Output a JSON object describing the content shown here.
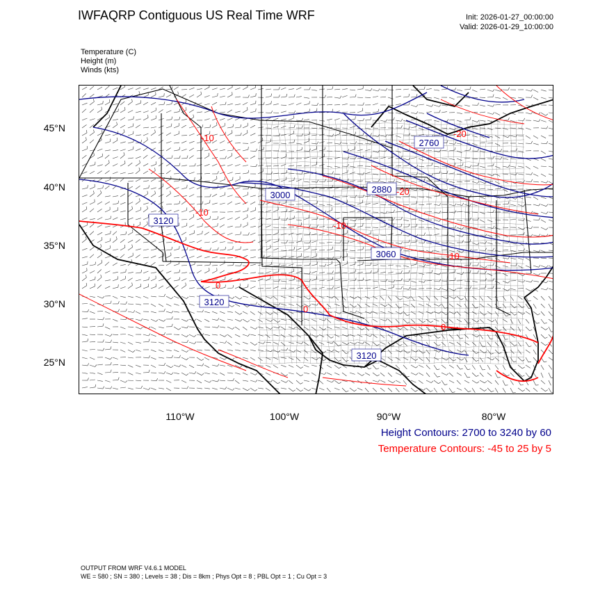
{
  "header": {
    "title": "IWFAQRP Contiguous US Real Time WRF",
    "init": "Init: 2026-01-27_00:00:00",
    "valid": "Valid: 2026-01-29_10:00:00"
  },
  "variables": {
    "temperature": "Temperature   (C)",
    "height": "Height   (m)",
    "winds": "Winds   (kts)"
  },
  "axes": {
    "lat_labels": [
      "45°N",
      "40°N",
      "35°N",
      "30°N",
      "25°N"
    ],
    "lon_labels": [
      "110°W",
      "100°W",
      "90°W",
      "80°W"
    ]
  },
  "legend": {
    "height": "Height Contours: 2700 to 3240 by 60",
    "temperature": "Temperature Contours: -45 to 25 by 5"
  },
  "contour_labels": {
    "height": [
      "2760",
      "2880",
      "3000",
      "3060",
      "3120",
      "3120",
      "3120"
    ],
    "temperature": [
      "-10",
      "-10",
      "-10",
      "-10",
      "0",
      "0",
      "0",
      "-20",
      "-20"
    ]
  },
  "footer": {
    "line1": "OUTPUT FROM WRF V4.6.1 MODEL",
    "line2": "WE = 580 ; SN = 380 ; Levels = 38 ; Dis = 8km ; Phys Opt = 8 ; PBL Opt = 1 ; Cu Opt = 3"
  },
  "colors": {
    "height_contour": "#00008b",
    "temperature_contour": "#ff0000",
    "coastline": "#000000"
  }
}
